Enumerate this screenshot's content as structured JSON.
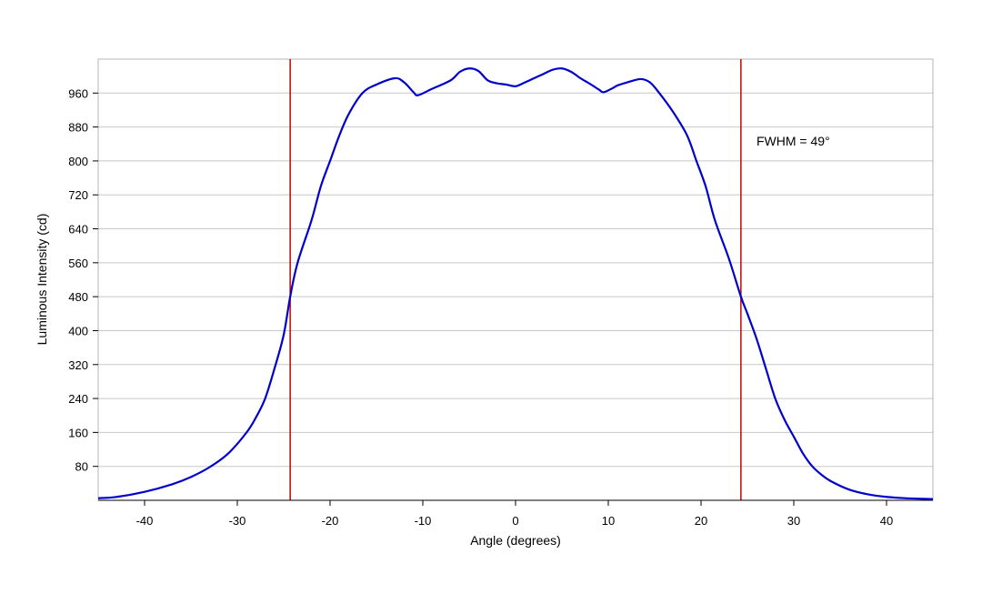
{
  "chart_data": {
    "type": "line",
    "xlabel": "Angle (degrees)",
    "ylabel": "Luminous Intensity (cd)",
    "xlim": [
      -45,
      45
    ],
    "ylim": [
      0,
      1040
    ],
    "x_ticks": [
      -40,
      -30,
      -20,
      -10,
      0,
      10,
      20,
      30,
      40
    ],
    "y_ticks": [
      80,
      160,
      240,
      320,
      400,
      480,
      560,
      640,
      720,
      800,
      880,
      960
    ],
    "grid": "horizontal",
    "series": [
      {
        "color": "#0000cc",
        "points": [
          [
            -45,
            5
          ],
          [
            -43,
            8
          ],
          [
            -40,
            20
          ],
          [
            -37,
            38
          ],
          [
            -35,
            55
          ],
          [
            -33,
            78
          ],
          [
            -31,
            110
          ],
          [
            -29,
            160
          ],
          [
            -28,
            195
          ],
          [
            -27,
            240
          ],
          [
            -26,
            310
          ],
          [
            -25,
            390
          ],
          [
            -24.3,
            480
          ],
          [
            -23.5,
            560
          ],
          [
            -22,
            660
          ],
          [
            -21,
            740
          ],
          [
            -20,
            800
          ],
          [
            -19,
            860
          ],
          [
            -18,
            910
          ],
          [
            -16.5,
            960
          ],
          [
            -15,
            980
          ],
          [
            -13,
            995
          ],
          [
            -12,
            985
          ],
          [
            -11,
            962
          ],
          [
            -10.5,
            955
          ],
          [
            -9,
            970
          ],
          [
            -7,
            990
          ],
          [
            -6,
            1010
          ],
          [
            -5,
            1018
          ],
          [
            -4,
            1012
          ],
          [
            -3,
            990
          ],
          [
            -2,
            983
          ],
          [
            -1,
            980
          ],
          [
            0,
            976
          ],
          [
            1,
            985
          ],
          [
            2,
            995
          ],
          [
            3,
            1005
          ],
          [
            4,
            1015
          ],
          [
            5,
            1018
          ],
          [
            6,
            1010
          ],
          [
            7,
            995
          ],
          [
            8,
            982
          ],
          [
            9,
            968
          ],
          [
            9.5,
            962
          ],
          [
            10.5,
            972
          ],
          [
            11,
            978
          ],
          [
            12,
            985
          ],
          [
            13.5,
            993
          ],
          [
            14.5,
            985
          ],
          [
            15.5,
            960
          ],
          [
            17,
            915
          ],
          [
            18.5,
            860
          ],
          [
            19.5,
            800
          ],
          [
            20.5,
            740
          ],
          [
            21.5,
            660
          ],
          [
            23,
            570
          ],
          [
            24.3,
            480
          ],
          [
            25,
            440
          ],
          [
            26,
            380
          ],
          [
            27,
            310
          ],
          [
            28,
            240
          ],
          [
            29,
            190
          ],
          [
            30,
            150
          ],
          [
            31,
            110
          ],
          [
            32,
            80
          ],
          [
            33,
            60
          ],
          [
            34,
            45
          ],
          [
            36,
            25
          ],
          [
            38,
            14
          ],
          [
            40,
            8
          ],
          [
            42,
            5
          ],
          [
            45,
            3
          ]
        ]
      }
    ],
    "reference_lines": [
      {
        "x": -24.3,
        "color": "#cc0000"
      },
      {
        "x": 24.3,
        "color": "#cc0000"
      }
    ],
    "annotations": [
      {
        "text": "FWHM = 49°"
      }
    ]
  },
  "colors": {
    "grid": "#c8c8c8",
    "frame": "#b4b4b4",
    "axis": "#000000"
  }
}
